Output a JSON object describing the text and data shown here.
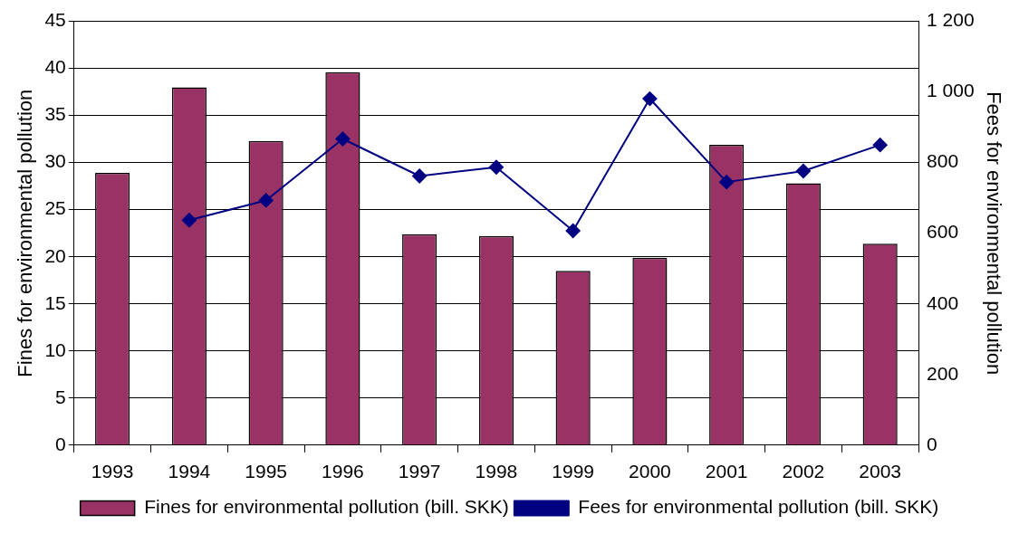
{
  "chart_data": {
    "type": "bar",
    "xlabel": null,
    "ylabel": "Fines for environmental pollution",
    "y2label": "Fees for environmental pollution",
    "categories": [
      "1993",
      "1994",
      "1995",
      "1996",
      "1997",
      "1998",
      "1999",
      "2000",
      "2001",
      "2002",
      "2003"
    ],
    "series": [
      {
        "name": "Fines for environmental pollution (bill. SKK)",
        "color": "#993366",
        "values": [
          28.9,
          38.0,
          32.3,
          39.6,
          22.4,
          22.2,
          18.5,
          19.9,
          31.9,
          27.8,
          21.4
        ]
      },
      {
        "name": "Fees for environmental pollution (bill. SKK)",
        "type": "line",
        "axis": "y2",
        "color": "#000080",
        "marker": "diamond",
        "values": [
          null,
          637,
          693,
          867,
          762,
          787,
          607,
          981,
          745,
          776,
          850
        ]
      }
    ],
    "ylim": [
      0,
      45
    ],
    "yticks": [
      0,
      5,
      10,
      15,
      20,
      25,
      30,
      35,
      40,
      45
    ],
    "y2lim": [
      0,
      1200
    ],
    "y2ticks": [
      0,
      200,
      400,
      600,
      800,
      {
        "value": 1000,
        "label": "1 000"
      },
      {
        "value": 1200,
        "label": "1 200"
      }
    ],
    "grid": "y",
    "legend": "bottom"
  }
}
